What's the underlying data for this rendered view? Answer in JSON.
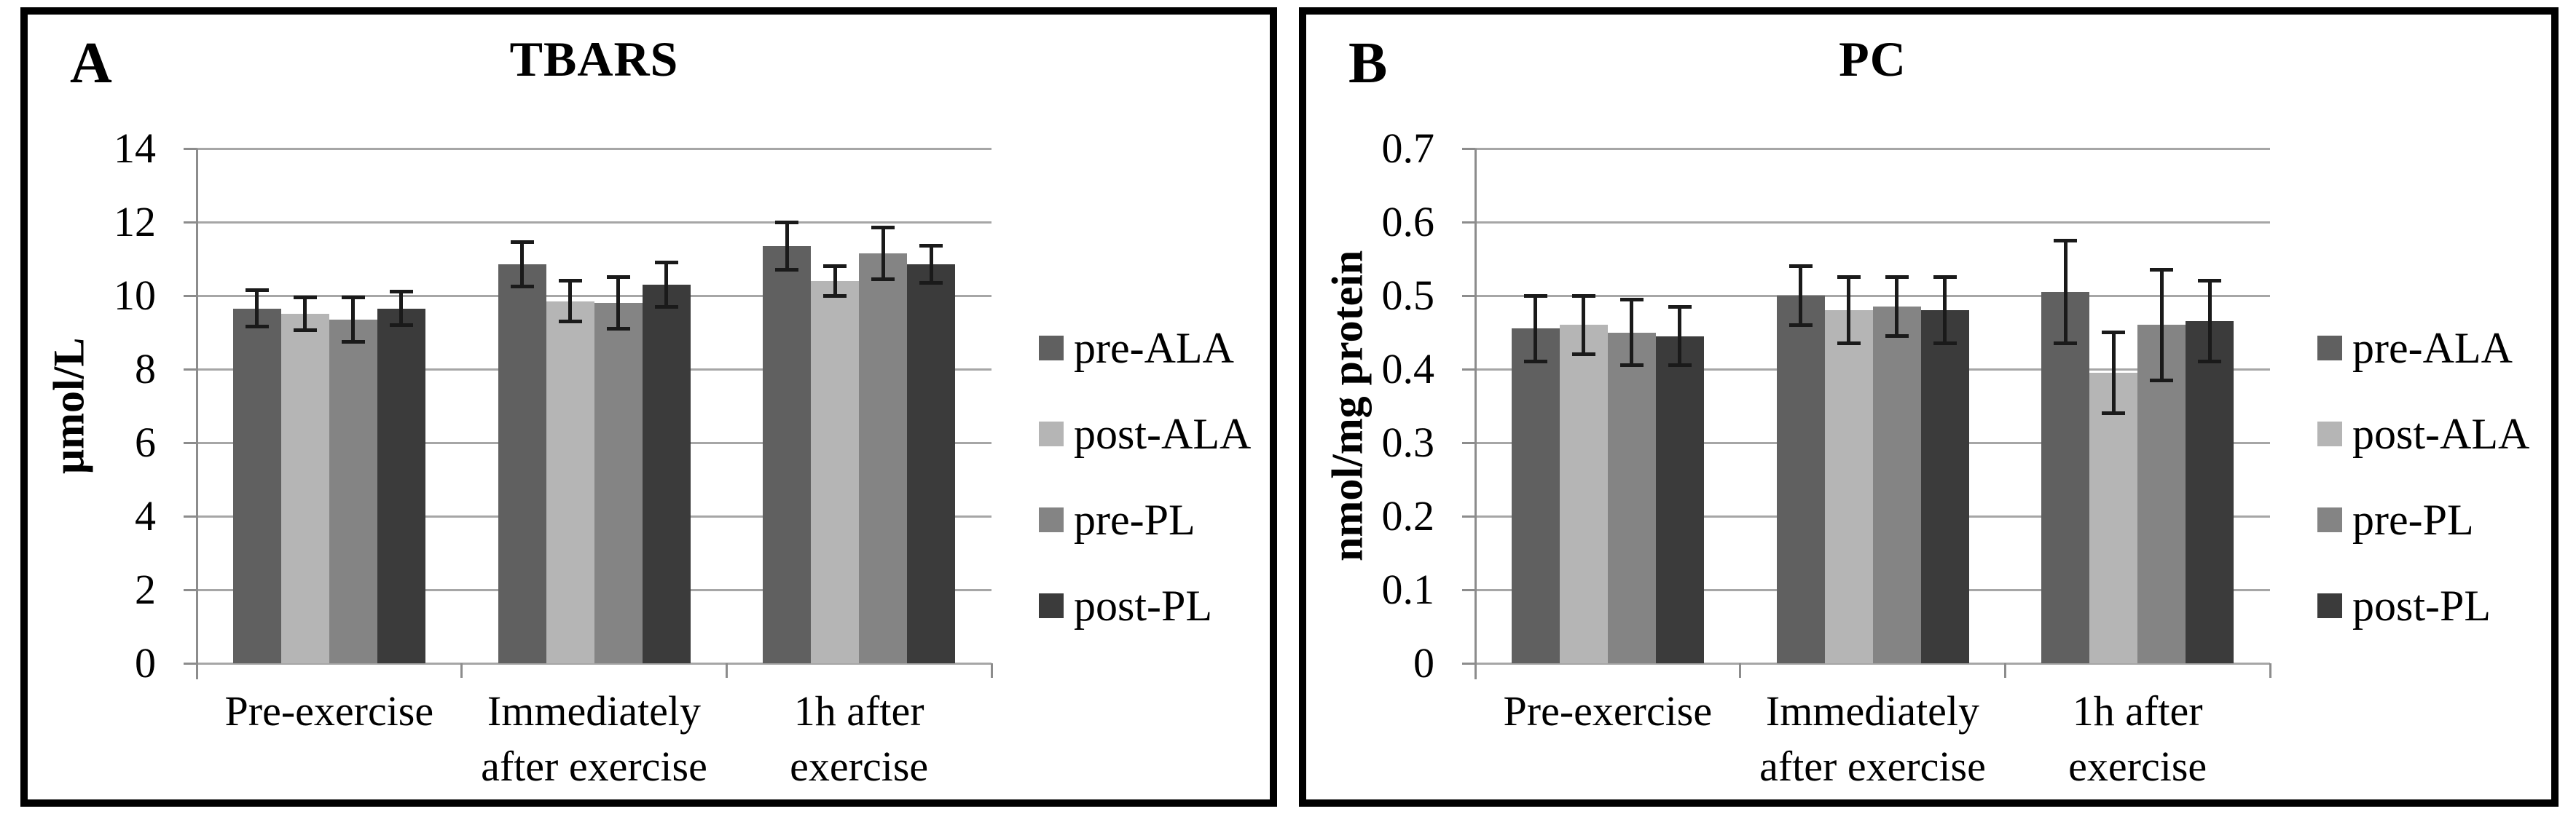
{
  "figure": {
    "background": "#ffffff",
    "panel_border_color": "#000000"
  },
  "styles": {
    "grid_color": "#a6a6a6",
    "axis_color": "#8c8c8c",
    "error_bar_color": "#1a1a1a"
  },
  "chart_data": [
    {
      "type": "bar",
      "panel_label": "A",
      "title": "TBARS",
      "ylabel": "μmol/L",
      "xlabel": "",
      "ylim": [
        0,
        14
      ],
      "ytick_step": 2,
      "yticks": [
        0,
        2,
        4,
        6,
        8,
        10,
        12,
        14
      ],
      "grid": true,
      "legend_position": "right",
      "categories": [
        "Pre-exercise",
        "Immediately\nafter exercise",
        "1h after\nexercise"
      ],
      "series": [
        {
          "name": "pre-ALA",
          "color": "#606060",
          "values": [
            9.65,
            10.85,
            11.35
          ],
          "errors": [
            0.5,
            0.6,
            0.65
          ]
        },
        {
          "name": "post-ALA",
          "color": "#b5b5b5",
          "values": [
            9.5,
            9.85,
            10.4
          ],
          "errors": [
            0.45,
            0.55,
            0.4
          ]
        },
        {
          "name": "pre-PL",
          "color": "#848484",
          "values": [
            9.35,
            9.8,
            11.15
          ],
          "errors": [
            0.6,
            0.7,
            0.7
          ]
        },
        {
          "name": "post-PL",
          "color": "#3b3b3b",
          "values": [
            9.65,
            10.3,
            10.85
          ],
          "errors": [
            0.45,
            0.6,
            0.5
          ]
        }
      ]
    },
    {
      "type": "bar",
      "panel_label": "B",
      "title": "PC",
      "ylabel": "nmol/mg protein",
      "xlabel": "",
      "ylim": [
        0,
        0.7
      ],
      "ytick_step": 0.1,
      "yticks": [
        0,
        0.1,
        0.2,
        0.3,
        0.4,
        0.5,
        0.6,
        0.7
      ],
      "grid": true,
      "legend_position": "right",
      "categories": [
        "Pre-exercise",
        "Immediately\nafter exercise",
        "1h after\nexercise"
      ],
      "series": [
        {
          "name": "pre-ALA",
          "color": "#606060",
          "values": [
            0.455,
            0.5,
            0.505
          ],
          "errors": [
            0.045,
            0.04,
            0.07
          ]
        },
        {
          "name": "post-ALA",
          "color": "#b5b5b5",
          "values": [
            0.46,
            0.48,
            0.395
          ],
          "errors": [
            0.04,
            0.045,
            0.055
          ]
        },
        {
          "name": "pre-PL",
          "color": "#848484",
          "values": [
            0.45,
            0.485,
            0.46
          ],
          "errors": [
            0.045,
            0.04,
            0.075
          ]
        },
        {
          "name": "post-PL",
          "color": "#3b3b3b",
          "values": [
            0.445,
            0.48,
            0.465
          ],
          "errors": [
            0.04,
            0.045,
            0.055
          ]
        }
      ]
    }
  ]
}
